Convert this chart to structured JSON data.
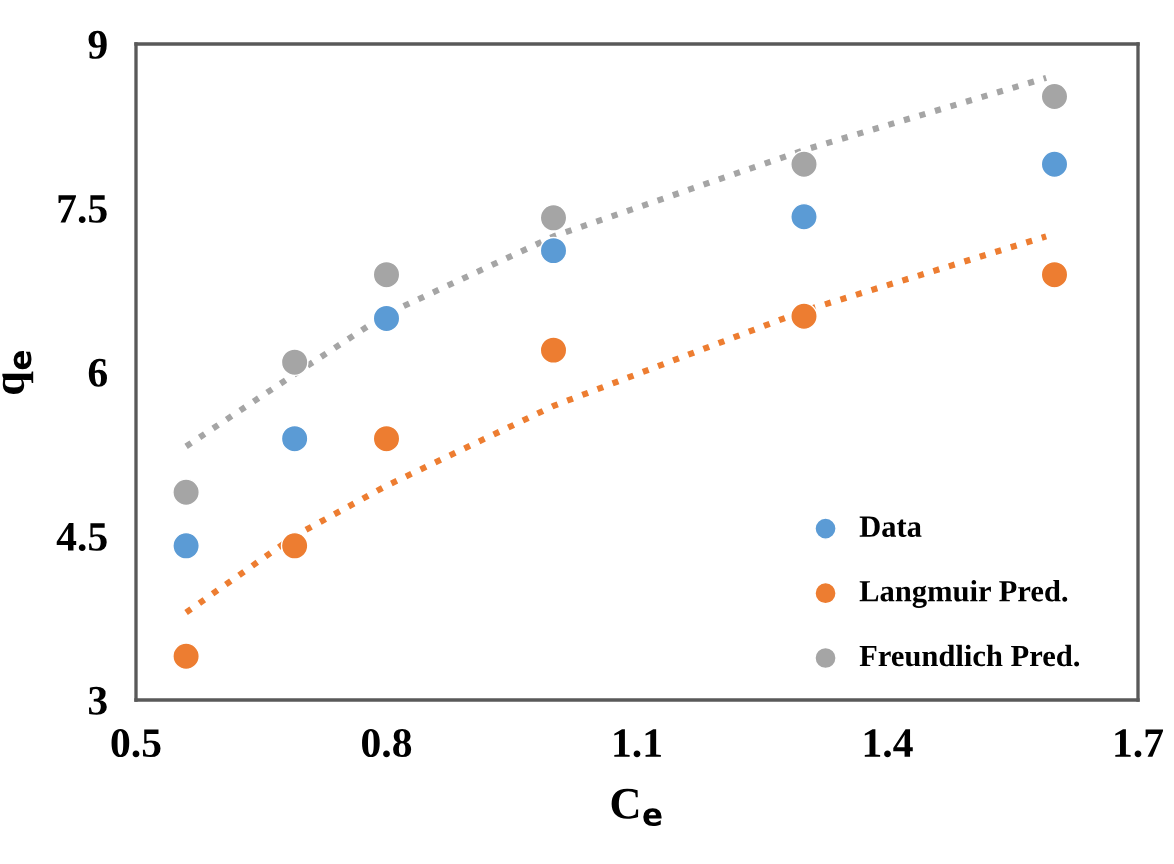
{
  "chart_data": {
    "type": "scatter",
    "xlabel": "C$_{e}$",
    "ylabel": "q$_{e}$",
    "x": [
      0.56,
      0.69,
      0.8,
      1.0,
      1.3,
      1.6
    ],
    "series": [
      {
        "name": "Data",
        "color": "#5b9bd5",
        "values": [
          4.41,
          5.39,
          6.49,
          7.11,
          7.42,
          7.9
        ]
      },
      {
        "name": "Langmuir Pred.",
        "color": "#ed7d31",
        "values": [
          3.4,
          4.41,
          5.39,
          6.2,
          6.51,
          6.89
        ]
      },
      {
        "name": "Freundlich Pred.",
        "color": "#a5a5a5",
        "values": [
          4.9,
          6.09,
          6.89,
          7.41,
          7.9,
          8.52
        ]
      },
      {
        "type": "line",
        "color": "#ed7d31",
        "line_style": "dotted",
        "marker": "none",
        "x": [
          0.56,
          0.69,
          0.8,
          1.0,
          1.3,
          1.59
        ],
        "values": [
          3.8,
          4.5,
          4.96,
          5.69,
          6.56,
          7.24
        ]
      },
      {
        "type": "line",
        "color": "#a5a5a5",
        "line_style": "dotted",
        "marker": "none",
        "x": [
          0.56,
          0.69,
          0.8,
          1.0,
          1.3,
          1.59
        ],
        "values": [
          5.32,
          5.98,
          6.53,
          7.24,
          8.03,
          8.69
        ]
      }
    ],
    "marker": "circle",
    "legend": "bottom right",
    "grid": false,
    "xlim": [
      0.5,
      1.7
    ],
    "xticks": [
      0.5,
      0.8,
      1.1,
      1.4,
      1.7
    ],
    "ylim": [
      3,
      9
    ],
    "yticks": [
      3,
      4.5,
      6,
      7.5,
      9
    ]
  }
}
